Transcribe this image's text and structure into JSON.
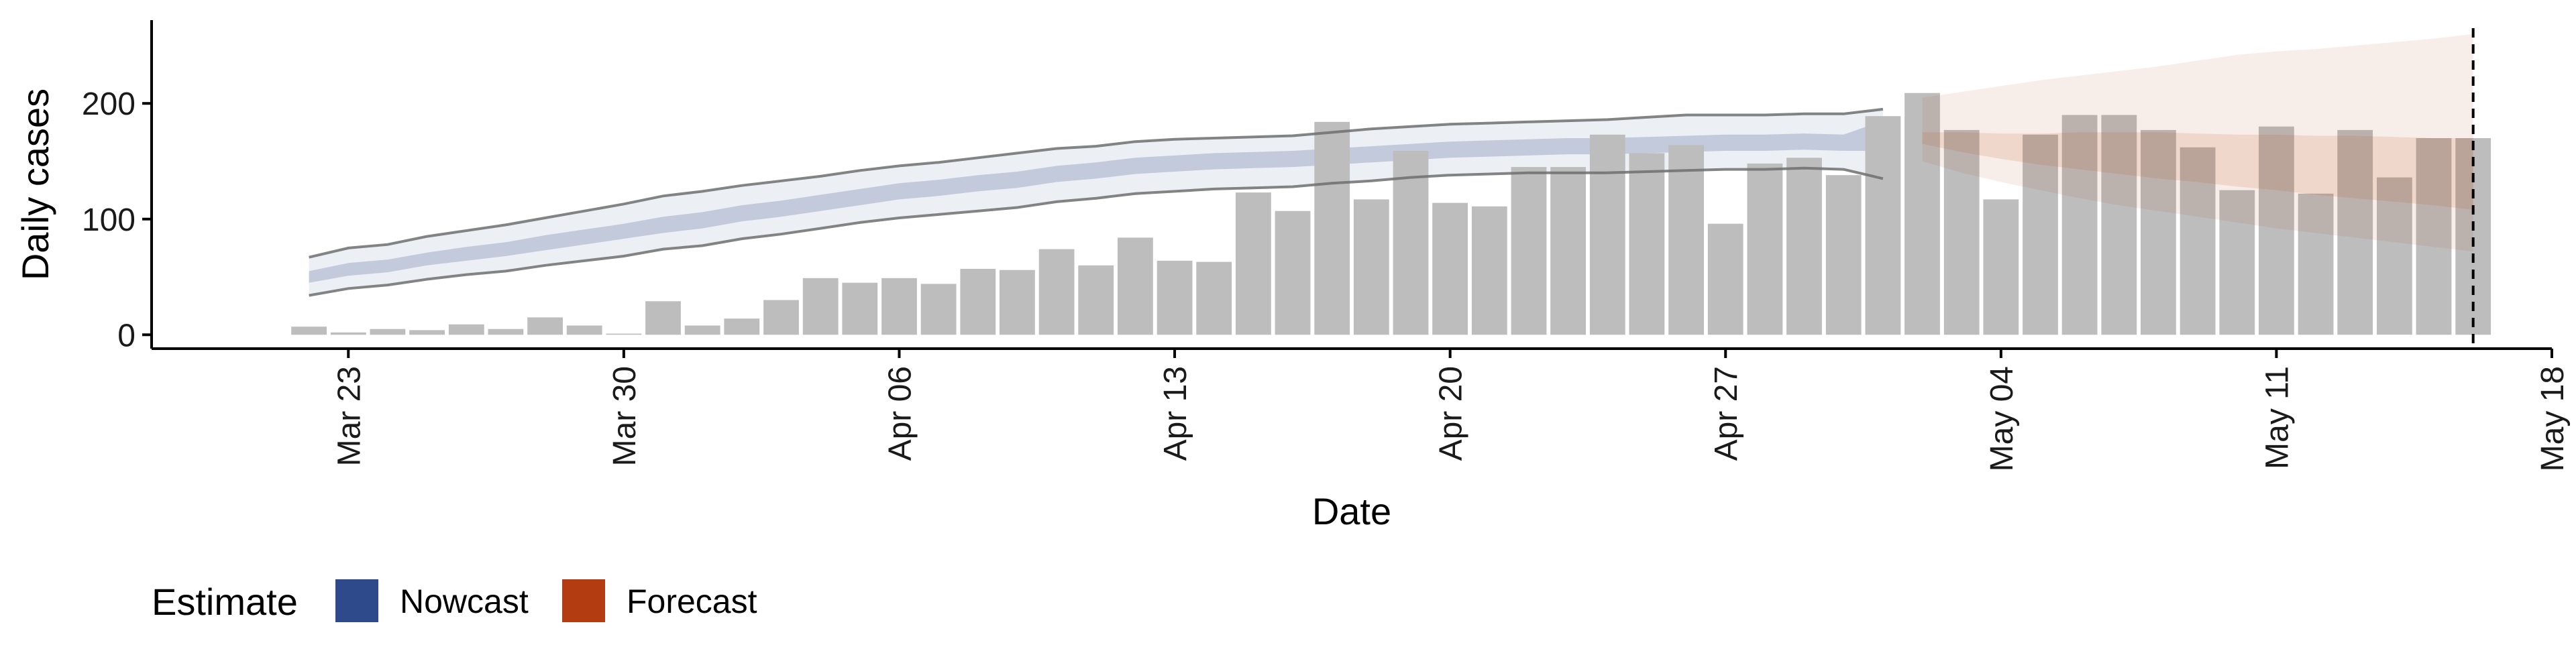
{
  "chart_data": {
    "type": "bar",
    "xlabel": "Date",
    "ylabel": "Daily cases",
    "ylim": [
      -12,
      272
    ],
    "yticks": [
      0,
      100,
      200
    ],
    "xlim": [
      "2020-03-18",
      "2020-05-18"
    ],
    "xticks": [
      "2020-03-23",
      "2020-03-30",
      "2020-04-06",
      "2020-04-13",
      "2020-04-20",
      "2020-04-27",
      "2020-05-04",
      "2020-05-11",
      "2020-05-18"
    ],
    "xtick_labels": [
      "Mar 23",
      "Mar 30",
      "Apr 06",
      "Apr 13",
      "Apr 20",
      "Apr 27",
      "May 04",
      "May 11",
      "May 18"
    ],
    "x_tick_label_rotation": -90,
    "grid": false,
    "reference_line": {
      "x": "2020-05-16",
      "style": "dashed"
    },
    "legend": {
      "title": "Estimate",
      "position": "bottom-left",
      "entries": [
        {
          "label": "Nowcast",
          "color": "#2f4a8a"
        },
        {
          "label": "Forecast",
          "color": "#b33d10"
        }
      ]
    },
    "colors": {
      "bars": "#bdbdbd",
      "nowcast": "#2f4a8a",
      "forecast": "#b33d10",
      "band_outline": "#6e6e6e"
    },
    "series": [
      {
        "name": "Daily cases",
        "type": "bar",
        "x": [
          "2020-03-22",
          "2020-03-23",
          "2020-03-24",
          "2020-03-25",
          "2020-03-26",
          "2020-03-27",
          "2020-03-28",
          "2020-03-29",
          "2020-03-30",
          "2020-03-31",
          "2020-04-01",
          "2020-04-02",
          "2020-04-03",
          "2020-04-04",
          "2020-04-05",
          "2020-04-06",
          "2020-04-07",
          "2020-04-08",
          "2020-04-09",
          "2020-04-10",
          "2020-04-11",
          "2020-04-12",
          "2020-04-13",
          "2020-04-14",
          "2020-04-15",
          "2020-04-16",
          "2020-04-17",
          "2020-04-18",
          "2020-04-19",
          "2020-04-20",
          "2020-04-21",
          "2020-04-22",
          "2020-04-23",
          "2020-04-24",
          "2020-04-25",
          "2020-04-26",
          "2020-04-27",
          "2020-04-28",
          "2020-04-29",
          "2020-04-30",
          "2020-05-01",
          "2020-05-02",
          "2020-05-03",
          "2020-05-04",
          "2020-05-05",
          "2020-05-06",
          "2020-05-07",
          "2020-05-08",
          "2020-05-09",
          "2020-05-10",
          "2020-05-11",
          "2020-05-12",
          "2020-05-13",
          "2020-05-14",
          "2020-05-15",
          "2020-05-16"
        ],
        "values": [
          7,
          2,
          5,
          4,
          9,
          5,
          15,
          8,
          1,
          29,
          8,
          14,
          30,
          49,
          45,
          49,
          44,
          57,
          56,
          74,
          60,
          84,
          64,
          63,
          123,
          107,
          184,
          117,
          159,
          114,
          111,
          145,
          145,
          173,
          157,
          164,
          96,
          148,
          153,
          138,
          189,
          209,
          177,
          117,
          173,
          190,
          190,
          177,
          162,
          125,
          180,
          122,
          177,
          136,
          170,
          170
        ]
      },
      {
        "name": "Nowcast",
        "type": "band",
        "x": [
          "2020-03-22",
          "2020-03-23",
          "2020-03-24",
          "2020-03-25",
          "2020-03-26",
          "2020-03-27",
          "2020-03-28",
          "2020-03-29",
          "2020-03-30",
          "2020-03-31",
          "2020-04-01",
          "2020-04-02",
          "2020-04-03",
          "2020-04-04",
          "2020-04-05",
          "2020-04-06",
          "2020-04-07",
          "2020-04-08",
          "2020-04-09",
          "2020-04-10",
          "2020-04-11",
          "2020-04-12",
          "2020-04-13",
          "2020-04-14",
          "2020-04-15",
          "2020-04-16",
          "2020-04-17",
          "2020-04-18",
          "2020-04-19",
          "2020-04-20",
          "2020-04-21",
          "2020-04-22",
          "2020-04-23",
          "2020-04-24",
          "2020-04-25",
          "2020-04-26",
          "2020-04-27",
          "2020-04-28",
          "2020-04-29",
          "2020-04-30",
          "2020-05-01"
        ],
        "lower90": [
          34,
          40,
          43,
          48,
          52,
          55,
          60,
          64,
          68,
          74,
          77,
          83,
          87,
          92,
          97,
          101,
          104,
          107,
          110,
          115,
          118,
          122,
          124,
          126,
          127,
          128,
          131,
          133,
          136,
          138,
          139,
          140,
          140,
          140,
          141,
          142,
          143,
          143,
          144,
          143,
          135
        ],
        "lower50": [
          45,
          51,
          54,
          60,
          64,
          68,
          73,
          78,
          83,
          88,
          92,
          98,
          102,
          107,
          112,
          117,
          120,
          124,
          127,
          132,
          135,
          139,
          141,
          143,
          144,
          145,
          147,
          149,
          151,
          153,
          154,
          155,
          156,
          156,
          157,
          158,
          159,
          159,
          160,
          159,
          159
        ],
        "upper50": [
          55,
          62,
          65,
          71,
          76,
          80,
          86,
          91,
          96,
          102,
          106,
          112,
          116,
          121,
          126,
          131,
          134,
          138,
          141,
          146,
          149,
          153,
          155,
          157,
          158,
          159,
          161,
          163,
          165,
          167,
          168,
          169,
          170,
          170,
          171,
          172,
          173,
          173,
          174,
          173,
          185
        ],
        "upper90": [
          67,
          75,
          78,
          85,
          90,
          95,
          101,
          107,
          113,
          120,
          124,
          129,
          133,
          137,
          142,
          146,
          149,
          153,
          157,
          161,
          163,
          167,
          169,
          170,
          171,
          172,
          175,
          178,
          180,
          182,
          183,
          184,
          185,
          186,
          188,
          190,
          190,
          190,
          191,
          191,
          195
        ]
      },
      {
        "name": "Forecast",
        "type": "band",
        "x": [
          "2020-05-02",
          "2020-05-03",
          "2020-05-04",
          "2020-05-05",
          "2020-05-06",
          "2020-05-07",
          "2020-05-08",
          "2020-05-09",
          "2020-05-10",
          "2020-05-11",
          "2020-05-12",
          "2020-05-13",
          "2020-05-14",
          "2020-05-15",
          "2020-05-16"
        ],
        "lower90": [
          150,
          140,
          132,
          125,
          118,
          112,
          107,
          102,
          97,
          92,
          88,
          84,
          80,
          76,
          72
        ],
        "lower50": [
          165,
          158,
          152,
          147,
          143,
          139,
          135,
          132,
          128,
          125,
          121,
          118,
          115,
          112,
          108
        ],
        "upper50": [
          175,
          175,
          174,
          174,
          175,
          175,
          175,
          174,
          173,
          173,
          172,
          172,
          171,
          170,
          170
        ],
        "upper90": [
          205,
          210,
          215,
          220,
          224,
          228,
          232,
          237,
          242,
          245,
          247,
          250,
          253,
          256,
          260
        ]
      }
    ]
  }
}
